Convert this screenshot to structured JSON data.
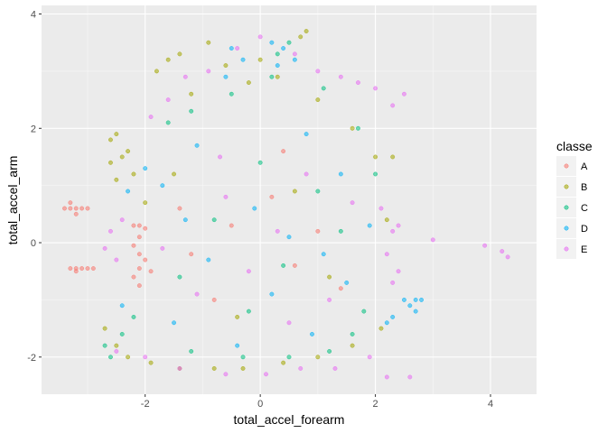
{
  "chart_data": {
    "type": "scatter",
    "title": "",
    "xlabel": "total_accel_forearm",
    "ylabel": "total_accel_arm",
    "xlim": [
      -3.8,
      4.8
    ],
    "ylim": [
      -2.65,
      4.15
    ],
    "x_ticks": [
      -2,
      0,
      2,
      4
    ],
    "y_ticks": [
      -2,
      0,
      2,
      4
    ],
    "x_tick_labels": [
      "-2",
      "0",
      "2",
      "4"
    ],
    "y_tick_labels": [
      "-2",
      "0",
      "2",
      "4"
    ],
    "grid": true,
    "legend": {
      "title": "classe",
      "placement": "right",
      "entries": [
        "A",
        "B",
        "C",
        "D",
        "E"
      ]
    },
    "series": [
      {
        "name": "A",
        "color": "#F8766D",
        "points": [
          [
            -3.3,
            0.6
          ],
          [
            -3.4,
            0.6
          ],
          [
            -3.2,
            0.6
          ],
          [
            -3.3,
            0.7
          ],
          [
            -3.2,
            0.5
          ],
          [
            -3.1,
            0.6
          ],
          [
            -3.0,
            0.6
          ],
          [
            -3.3,
            -0.45
          ],
          [
            -3.2,
            -0.45
          ],
          [
            -3.1,
            -0.45
          ],
          [
            -3.0,
            -0.45
          ],
          [
            -2.9,
            -0.45
          ],
          [
            -3.2,
            -0.5
          ],
          [
            -2.2,
            0.3
          ],
          [
            -2.1,
            0.3
          ],
          [
            -2.0,
            0.25
          ],
          [
            -2.1,
            0.1
          ],
          [
            -2.2,
            -0.05
          ],
          [
            -2.1,
            -0.2
          ],
          [
            -2.0,
            -0.3
          ],
          [
            -2.1,
            -0.45
          ],
          [
            -2.2,
            -0.6
          ],
          [
            -2.1,
            -0.75
          ],
          [
            -1.9,
            -0.5
          ],
          [
            -1.2,
            -0.2
          ],
          [
            -0.5,
            0.3
          ],
          [
            0.2,
            0.8
          ],
          [
            0.6,
            -0.4
          ],
          [
            1.0,
            0.2
          ],
          [
            -0.8,
            -1.0
          ],
          [
            0.4,
            1.6
          ],
          [
            -1.4,
            0.6
          ],
          [
            1.4,
            -0.8
          ]
        ]
      },
      {
        "name": "B",
        "color": "#A3A500",
        "points": [
          [
            -2.6,
            1.4
          ],
          [
            -2.6,
            1.8
          ],
          [
            -2.5,
            1.9
          ],
          [
            -2.4,
            1.5
          ],
          [
            -2.3,
            1.6
          ],
          [
            -2.2,
            1.2
          ],
          [
            -2.5,
            1.1
          ],
          [
            -1.8,
            3.0
          ],
          [
            -1.6,
            3.2
          ],
          [
            -1.4,
            3.3
          ],
          [
            -0.9,
            3.5
          ],
          [
            -0.6,
            3.1
          ],
          [
            0.0,
            3.2
          ],
          [
            0.3,
            2.9
          ],
          [
            0.7,
            3.6
          ],
          [
            0.8,
            3.7
          ],
          [
            -1.2,
            2.6
          ],
          [
            -0.2,
            2.8
          ],
          [
            1.0,
            2.5
          ],
          [
            1.6,
            2.0
          ],
          [
            2.0,
            1.5
          ],
          [
            2.3,
            1.5
          ],
          [
            -2.7,
            -1.5
          ],
          [
            -2.5,
            -1.8
          ],
          [
            -2.3,
            -2.0
          ],
          [
            -1.9,
            -2.1
          ],
          [
            -1.4,
            -2.2
          ],
          [
            -0.8,
            -2.2
          ],
          [
            -0.3,
            -2.2
          ],
          [
            0.4,
            -2.1
          ],
          [
            1.0,
            -2.0
          ],
          [
            1.6,
            -1.8
          ],
          [
            2.1,
            -1.5
          ],
          [
            -1.5,
            1.2
          ],
          [
            0.6,
            0.9
          ],
          [
            -0.4,
            -1.3
          ],
          [
            1.2,
            -0.6
          ],
          [
            -2.0,
            0.7
          ],
          [
            2.2,
            0.4
          ]
        ]
      },
      {
        "name": "C",
        "color": "#00BF7D",
        "points": [
          [
            -2.7,
            -1.8
          ],
          [
            -2.6,
            -2.0
          ],
          [
            -2.4,
            -1.6
          ],
          [
            -1.6,
            2.1
          ],
          [
            -1.2,
            2.3
          ],
          [
            -0.5,
            2.6
          ],
          [
            0.2,
            2.9
          ],
          [
            0.3,
            3.3
          ],
          [
            0.5,
            3.5
          ],
          [
            1.1,
            2.7
          ],
          [
            1.7,
            2.0
          ],
          [
            2.0,
            1.2
          ],
          [
            1.8,
            -1.2
          ],
          [
            1.6,
            -1.6
          ],
          [
            1.2,
            -1.9
          ],
          [
            0.5,
            -2.0
          ],
          [
            -0.3,
            -2.0
          ],
          [
            -1.2,
            -1.9
          ],
          [
            -0.8,
            0.4
          ],
          [
            0.4,
            -0.4
          ],
          [
            1.0,
            0.9
          ],
          [
            -1.4,
            -0.6
          ],
          [
            0.0,
            1.4
          ],
          [
            -0.2,
            -1.2
          ],
          [
            1.4,
            0.2
          ],
          [
            -2.2,
            -1.3
          ]
        ]
      },
      {
        "name": "D",
        "color": "#00B0F6",
        "points": [
          [
            0.2,
            3.5
          ],
          [
            0.4,
            3.4
          ],
          [
            -0.5,
            3.4
          ],
          [
            -0.3,
            3.2
          ],
          [
            0.6,
            3.2
          ],
          [
            0.3,
            3.1
          ],
          [
            -0.6,
            2.9
          ],
          [
            2.3,
            -1.3
          ],
          [
            2.5,
            -1.0
          ],
          [
            2.6,
            -1.1
          ],
          [
            2.7,
            -1.0
          ],
          [
            2.8,
            -1.0
          ],
          [
            2.7,
            -1.2
          ],
          [
            2.2,
            -1.4
          ],
          [
            -2.3,
            0.9
          ],
          [
            -2.0,
            1.3
          ],
          [
            -1.7,
            1.0
          ],
          [
            -1.1,
            1.7
          ],
          [
            0.8,
            1.9
          ],
          [
            1.4,
            1.2
          ],
          [
            1.9,
            0.3
          ],
          [
            1.5,
            -0.7
          ],
          [
            0.9,
            -1.6
          ],
          [
            -0.4,
            -1.8
          ],
          [
            -1.5,
            -1.4
          ],
          [
            -2.4,
            -1.1
          ],
          [
            -0.1,
            0.6
          ],
          [
            0.5,
            0.1
          ],
          [
            -0.9,
            -0.3
          ],
          [
            0.2,
            -0.9
          ],
          [
            1.1,
            -0.2
          ],
          [
            -1.3,
            0.4
          ]
        ]
      },
      {
        "name": "E",
        "color": "#E76BF3",
        "points": [
          [
            3.0,
            0.05
          ],
          [
            3.9,
            -0.05
          ],
          [
            4.2,
            -0.15
          ],
          [
            4.3,
            -0.25
          ],
          [
            2.6,
            -2.35
          ],
          [
            2.2,
            -2.35
          ],
          [
            2.3,
            -0.7
          ],
          [
            2.4,
            -0.5
          ],
          [
            2.2,
            -0.2
          ],
          [
            2.3,
            0.2
          ],
          [
            2.4,
            0.3
          ],
          [
            2.1,
            0.6
          ],
          [
            2.5,
            2.6
          ],
          [
            2.3,
            2.4
          ],
          [
            2.0,
            2.7
          ],
          [
            1.7,
            2.8
          ],
          [
            1.4,
            2.9
          ],
          [
            1.0,
            3.0
          ],
          [
            0.6,
            3.3
          ],
          [
            0.0,
            3.6
          ],
          [
            -0.4,
            3.4
          ],
          [
            -0.9,
            3.0
          ],
          [
            -1.3,
            2.9
          ],
          [
            -1.6,
            2.5
          ],
          [
            -1.9,
            2.2
          ],
          [
            -2.5,
            -1.9
          ],
          [
            -2.0,
            -2.0
          ],
          [
            -1.4,
            -2.2
          ],
          [
            -0.6,
            -2.3
          ],
          [
            0.1,
            -2.3
          ],
          [
            0.7,
            -2.2
          ],
          [
            1.3,
            -2.2
          ],
          [
            1.9,
            -2.0
          ],
          [
            -2.4,
            0.4
          ],
          [
            -2.6,
            0.2
          ],
          [
            -2.7,
            -0.1
          ],
          [
            -2.5,
            -0.3
          ],
          [
            -0.6,
            0.8
          ],
          [
            0.3,
            0.2
          ],
          [
            1.2,
            -1.0
          ],
          [
            -1.1,
            -0.9
          ],
          [
            0.8,
            1.2
          ],
          [
            -0.2,
            -0.5
          ],
          [
            1.6,
            0.7
          ],
          [
            -1.7,
            -0.1
          ],
          [
            0.5,
            -1.4
          ],
          [
            -0.7,
            1.5
          ]
        ]
      }
    ]
  }
}
